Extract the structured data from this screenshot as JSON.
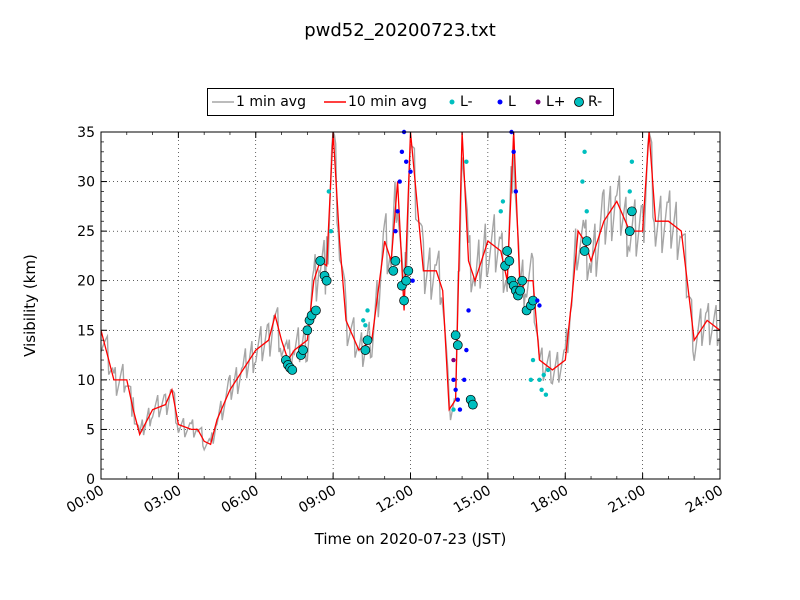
{
  "title": "pwd52_20200723.txt",
  "legend": [
    {
      "label": "1 min avg",
      "color": "#a6a6a6",
      "kind": "line"
    },
    {
      "label": "10 min avg",
      "color": "#ff0000",
      "kind": "line"
    },
    {
      "label": "L-",
      "color": "#00bfbf",
      "kind": "dot"
    },
    {
      "label": "L",
      "color": "#0000ff",
      "kind": "dot"
    },
    {
      "label": "L+",
      "color": "#800080",
      "kind": "dot"
    },
    {
      "label": "R-",
      "color": "#00bfbf",
      "kind": "circle"
    }
  ],
  "chart_data": {
    "type": "line",
    "title": "pwd52_20200723.txt",
    "xlabel": "Time on 2020-07-23 (JST)",
    "ylabel": "Visibility (km)",
    "xlim": [
      "00:00",
      "24:00"
    ],
    "ylim": [
      0,
      35
    ],
    "xticks": [
      "00:00",
      "03:00",
      "06:00",
      "09:00",
      "12:00",
      "15:00",
      "18:00",
      "21:00",
      "24:00"
    ],
    "yticks": [
      "0",
      "5",
      "10",
      "15",
      "20",
      "25",
      "30",
      "35"
    ],
    "grid": true,
    "legend_position": "top-center",
    "series": [
      {
        "name": "10 min avg",
        "color": "#ff0000",
        "x": [
          "00:00",
          "00:30",
          "01:00",
          "01:15",
          "01:30",
          "02:00",
          "02:30",
          "02:45",
          "03:00",
          "03:30",
          "03:45",
          "04:00",
          "04:15",
          "04:30",
          "05:00",
          "05:30",
          "06:00",
          "06:30",
          "06:45",
          "07:00",
          "07:15",
          "07:30",
          "08:00",
          "08:15",
          "08:30",
          "08:45",
          "09:00",
          "09:15",
          "09:30",
          "10:00",
          "10:30",
          "11:00",
          "11:15",
          "11:30",
          "11:45",
          "12:00",
          "12:30",
          "13:00",
          "13:15",
          "13:30",
          "13:45",
          "14:00",
          "14:15",
          "14:30",
          "15:00",
          "15:30",
          "15:45",
          "16:00",
          "16:15",
          "16:30",
          "16:45",
          "17:00",
          "17:30",
          "18:00",
          "18:15",
          "18:30",
          "18:45",
          "19:00",
          "19:30",
          "20:00",
          "20:30",
          "21:00",
          "21:15",
          "21:30",
          "22:00",
          "22:30",
          "23:00",
          "23:30",
          "24:00"
        ],
        "values": [
          15,
          10,
          10,
          7,
          4.5,
          7,
          7.5,
          9,
          5.5,
          5,
          5,
          3.8,
          3.5,
          6,
          9,
          11,
          13,
          14,
          16.5,
          14,
          12,
          13,
          14,
          20,
          22,
          21.5,
          35,
          24,
          16,
          13,
          14,
          24,
          22,
          30,
          17,
          35,
          21,
          21,
          19,
          7,
          8,
          35,
          22,
          20,
          24,
          23,
          20,
          35,
          19,
          20,
          20,
          12,
          11,
          12,
          18,
          25,
          24,
          22,
          26,
          28,
          25,
          25,
          35,
          26,
          26,
          25,
          14,
          16,
          15
        ]
      }
    ],
    "events": [
      {
        "name": "R-",
        "x": [
          "07:10",
          "07:15",
          "07:20",
          "07:25",
          "07:45",
          "07:50",
          "08:00",
          "08:05",
          "08:10",
          "08:20",
          "08:30",
          "08:40",
          "08:45",
          "10:15",
          "10:20",
          "11:20",
          "11:25",
          "11:40",
          "11:45",
          "11:50",
          "11:55",
          "13:45",
          "13:50",
          "14:20",
          "14:25",
          "15:40",
          "15:45",
          "15:50",
          "15:55",
          "16:00",
          "16:05",
          "16:10",
          "16:15",
          "16:20",
          "16:30",
          "16:40",
          "16:45",
          "18:45",
          "18:50",
          "20:30",
          "20:35"
        ],
        "values": [
          12,
          11.5,
          11.2,
          11,
          12.5,
          13,
          15,
          16,
          16.5,
          17,
          22,
          20.5,
          20,
          13,
          14,
          21,
          22,
          19.5,
          18,
          20,
          21,
          14.5,
          13.5,
          8,
          7.5,
          21.5,
          23,
          22,
          20,
          19.5,
          19,
          18.5,
          19,
          20,
          17,
          17.5,
          18,
          23,
          24,
          25,
          27
        ]
      },
      {
        "name": "L-",
        "x": [
          "08:50",
          "08:55",
          "10:10",
          "10:15",
          "10:20",
          "13:40",
          "14:10",
          "15:30",
          "15:35",
          "16:40",
          "16:45",
          "17:00",
          "17:05",
          "17:10",
          "17:15",
          "17:20",
          "18:40",
          "18:45",
          "18:50",
          "20:30",
          "20:35"
        ],
        "values": [
          29,
          25,
          16,
          15.5,
          17,
          7,
          32,
          27,
          28,
          10,
          12,
          10,
          9,
          10.5,
          8.5,
          11,
          30,
          33,
          27,
          29,
          32
        ]
      },
      {
        "name": "L",
        "x": [
          "11:25",
          "11:30",
          "11:35",
          "11:40",
          "11:45",
          "11:50",
          "12:00",
          "12:05",
          "13:40",
          "13:45",
          "13:50",
          "13:55",
          "14:05",
          "14:10",
          "14:15",
          "15:55",
          "16:00",
          "16:05",
          "16:55",
          "17:00"
        ],
        "values": [
          25,
          27,
          30,
          33,
          35,
          32,
          31,
          20,
          10,
          9,
          8,
          7,
          10,
          13,
          17,
          35,
          33,
          29,
          18,
          17.5
        ]
      },
      {
        "name": "L+",
        "x": [
          "13:40"
        ],
        "values": [
          12
        ]
      }
    ]
  }
}
